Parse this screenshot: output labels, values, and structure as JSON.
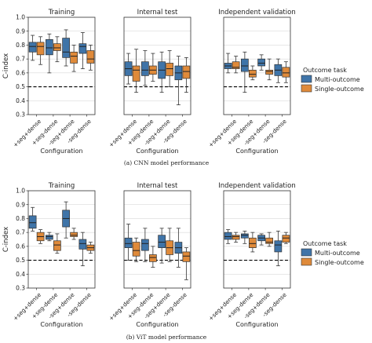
{
  "figure": {
    "captions": [
      "(a) CNN model performance",
      "(b) ViT model performance"
    ]
  },
  "legend": {
    "title": "Outcome task",
    "entries": [
      "Multi-outcome",
      "Single-outcome"
    ],
    "placement": "right"
  },
  "colors": {
    "multi": "#3f74a8",
    "single": "#df8a3a",
    "grid": "#d9d9d9",
    "reference_line": "#000000"
  },
  "chart_data": [
    {
      "type": "box",
      "model": "CNN",
      "ylabel": "C-index",
      "xlabel": "Configuration",
      "ylim": [
        0.3,
        1.0
      ],
      "yticks": [
        0.3,
        0.4,
        0.5,
        0.6,
        0.7,
        0.8,
        0.9,
        1.0
      ],
      "reference_line": 0.5,
      "categories": [
        "+seg+dense",
        "+seg-dense",
        "-seg+dense",
        "-seg-dense"
      ],
      "panels": [
        {
          "title": "Training",
          "series": [
            {
              "name": "Multi-outcome",
              "boxes": [
                [
                  0.69,
                  0.75,
                  0.79,
                  0.82,
                  0.87
                ],
                [
                  0.6,
                  0.73,
                  0.78,
                  0.84,
                  0.88
                ],
                [
                  0.65,
                  0.71,
                  0.75,
                  0.85,
                  0.91
                ],
                [
                  0.63,
                  0.74,
                  0.79,
                  0.81,
                  0.89
                ]
              ]
            },
            {
              "name": "Single-outcome",
              "boxes": [
                [
                  0.66,
                  0.73,
                  0.79,
                  0.82,
                  0.86
                ],
                [
                  0.68,
                  0.76,
                  0.78,
                  0.81,
                  0.86
                ],
                [
                  0.61,
                  0.67,
                  0.72,
                  0.75,
                  0.8
                ],
                [
                  0.62,
                  0.67,
                  0.7,
                  0.76,
                  0.8
                ]
              ]
            }
          ]
        },
        {
          "title": "Internal test",
          "series": [
            {
              "name": "Multi-outcome",
              "boxes": [
                [
                  0.52,
                  0.58,
                  0.63,
                  0.68,
                  0.74
                ],
                [
                  0.51,
                  0.58,
                  0.62,
                  0.68,
                  0.76
                ],
                [
                  0.46,
                  0.56,
                  0.62,
                  0.68,
                  0.75
                ],
                [
                  0.37,
                  0.55,
                  0.6,
                  0.65,
                  0.72
                ]
              ]
            },
            {
              "name": "Single-outcome",
              "boxes": [
                [
                  0.46,
                  0.54,
                  0.62,
                  0.65,
                  0.77
                ],
                [
                  0.54,
                  0.59,
                  0.62,
                  0.65,
                  0.74
                ],
                [
                  0.5,
                  0.58,
                  0.63,
                  0.67,
                  0.76
                ],
                [
                  0.46,
                  0.56,
                  0.61,
                  0.65,
                  0.71
                ]
              ]
            }
          ]
        },
        {
          "title": "Independent validation",
          "series": [
            {
              "name": "Multi-outcome",
              "boxes": [
                [
                  0.6,
                  0.63,
                  0.65,
                  0.67,
                  0.74
                ],
                [
                  0.46,
                  0.61,
                  0.65,
                  0.7,
                  0.75
                ],
                [
                  0.62,
                  0.65,
                  0.67,
                  0.7,
                  0.73
                ],
                [
                  0.53,
                  0.58,
                  0.62,
                  0.66,
                  0.7
                ]
              ]
            },
            {
              "name": "Single-outcome",
              "boxes": [
                [
                  0.6,
                  0.63,
                  0.64,
                  0.68,
                  0.72
                ],
                [
                  0.55,
                  0.57,
                  0.59,
                  0.62,
                  0.65
                ],
                [
                  0.55,
                  0.59,
                  0.61,
                  0.62,
                  0.7
                ],
                [
                  0.53,
                  0.57,
                  0.6,
                  0.64,
                  0.68
                ]
              ]
            }
          ]
        }
      ]
    },
    {
      "type": "box",
      "model": "ViT",
      "ylabel": "C-index",
      "xlabel": "Configuration",
      "ylim": [
        0.3,
        1.0
      ],
      "yticks": [
        0.3,
        0.4,
        0.5,
        0.6,
        0.7,
        0.8,
        0.9,
        1.0
      ],
      "reference_line": 0.5,
      "categories": [
        "+seg+dense",
        "+seg-dense",
        "-seg+dense",
        "-seg-dense"
      ],
      "panels": [
        {
          "title": "Training",
          "series": [
            {
              "name": "Multi-outcome",
              "boxes": [
                [
                  0.71,
                  0.73,
                  0.77,
                  0.82,
                  0.88
                ],
                [
                  0.64,
                  0.65,
                  0.67,
                  0.68,
                  0.7
                ],
                [
                  0.66,
                  0.74,
                  0.8,
                  0.86,
                  0.92
                ],
                [
                  0.46,
                  0.58,
                  0.62,
                  0.65,
                  0.7
                ]
              ]
            },
            {
              "name": "Single-outcome",
              "boxes": [
                [
                  0.62,
                  0.64,
                  0.67,
                  0.7,
                  0.72
                ],
                [
                  0.55,
                  0.57,
                  0.61,
                  0.64,
                  0.69
                ],
                [
                  0.65,
                  0.67,
                  0.68,
                  0.7,
                  0.73
                ],
                [
                  0.55,
                  0.57,
                  0.59,
                  0.61,
                  0.63
                ]
              ]
            }
          ]
        },
        {
          "title": "Internal test",
          "series": [
            {
              "name": "Multi-outcome",
              "boxes": [
                [
                  0.5,
                  0.59,
                  0.62,
                  0.66,
                  0.76
                ],
                [
                  0.49,
                  0.57,
                  0.62,
                  0.65,
                  0.73
                ],
                [
                  0.48,
                  0.59,
                  0.63,
                  0.68,
                  0.73
                ],
                [
                  0.45,
                  0.55,
                  0.59,
                  0.63,
                  0.73
                ]
              ]
            },
            {
              "name": "Single-outcome",
              "boxes": [
                [
                  0.49,
                  0.53,
                  0.57,
                  0.63,
                  0.66
                ],
                [
                  0.45,
                  0.49,
                  0.52,
                  0.54,
                  0.6
                ],
                [
                  0.49,
                  0.54,
                  0.59,
                  0.64,
                  0.73
                ],
                [
                  0.36,
                  0.49,
                  0.53,
                  0.56,
                  0.59
                ]
              ]
            }
          ]
        },
        {
          "title": "Independent validation",
          "series": [
            {
              "name": "Multi-outcome",
              "boxes": [
                [
                  0.62,
                  0.65,
                  0.67,
                  0.7,
                  0.72
                ],
                [
                  0.62,
                  0.66,
                  0.68,
                  0.69,
                  0.71
                ],
                [
                  0.61,
                  0.64,
                  0.66,
                  0.68,
                  0.69
                ],
                [
                  0.46,
                  0.56,
                  0.61,
                  0.64,
                  0.71
                ]
              ]
            },
            {
              "name": "Single-outcome",
              "boxes": [
                [
                  0.63,
                  0.65,
                  0.67,
                  0.68,
                  0.7
                ],
                [
                  0.56,
                  0.59,
                  0.62,
                  0.66,
                  0.7
                ],
                [
                  0.6,
                  0.62,
                  0.63,
                  0.66,
                  0.7
                ],
                [
                  0.62,
                  0.63,
                  0.66,
                  0.68,
                  0.7
                ]
              ]
            }
          ]
        }
      ]
    }
  ]
}
